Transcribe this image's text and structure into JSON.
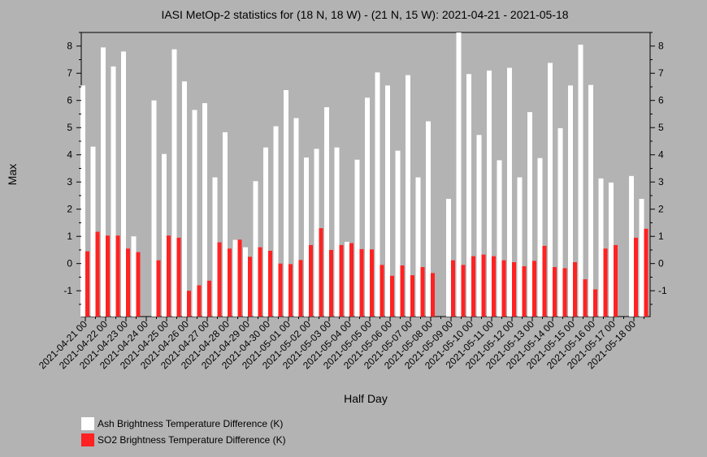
{
  "chart_data": {
    "type": "bar",
    "title": "IASI MetOp-2 statistics for (18 N, 18 W) - (21 N, 15 W): 2021-04-21 - 2021-05-18",
    "xlabel": "Half Day",
    "ylabel": "Max",
    "ylim": [
      -1.95,
      8.5
    ],
    "yticks": [
      -1,
      0,
      1,
      2,
      3,
      4,
      5,
      6,
      7,
      8
    ],
    "x_tick_labels": [
      "2021-04-21 00",
      "2021-04-22 00",
      "2021-04-23 00",
      "2021-04-24 00",
      "2021-04-25 00",
      "2021-04-26 00",
      "2021-04-27 00",
      "2021-04-28 00",
      "2021-04-29 00",
      "2021-04-30 00",
      "2021-05-01 00",
      "2021-05-02 00",
      "2021-05-03 00",
      "2021-05-04 00",
      "2021-05-05 00",
      "2021-05-06 00",
      "2021-05-07 00",
      "2021-05-08 00",
      "2021-05-09 00",
      "2021-05-10 00",
      "2021-05-11 00",
      "2021-05-12 00",
      "2021-05-13 00",
      "2021-05-14 00",
      "2021-05-15 00",
      "2021-05-16 00",
      "2021-05-17 00",
      "2021-05-18 00"
    ],
    "series": [
      {
        "name": "Ash Brightness Temperature Difference (K)",
        "color": "#ffffff",
        "values": [
          6.55,
          4.3,
          7.95,
          7.25,
          7.8,
          1.0,
          null,
          6.0,
          4.03,
          7.88,
          6.7,
          5.65,
          5.9,
          3.17,
          4.83,
          0.87,
          0.6,
          3.03,
          4.27,
          5.05,
          6.38,
          5.35,
          3.9,
          4.22,
          5.75,
          4.27,
          0.8,
          3.82,
          6.1,
          7.03,
          6.55,
          4.15,
          6.93,
          3.17,
          5.23,
          null,
          2.38,
          8.5,
          6.97,
          4.73,
          7.1,
          3.8,
          7.2,
          3.17,
          5.57,
          3.88,
          7.38,
          4.98,
          6.55,
          8.05,
          6.57,
          3.13,
          2.98,
          null,
          3.22,
          2.38
        ]
      },
      {
        "name": "SO2 Brightness Temperature Difference (K)",
        "color": "#ff2222",
        "values": [
          0.45,
          1.17,
          1.03,
          1.03,
          0.55,
          0.42,
          null,
          0.12,
          1.03,
          0.95,
          -1.0,
          -0.8,
          -0.63,
          0.78,
          0.55,
          0.88,
          0.25,
          0.6,
          0.47,
          0.0,
          -0.02,
          0.13,
          0.68,
          1.3,
          0.5,
          0.68,
          0.75,
          0.53,
          0.52,
          -0.05,
          -0.45,
          -0.07,
          -0.43,
          -0.13,
          -0.35,
          null,
          0.12,
          -0.05,
          0.27,
          0.33,
          0.27,
          0.12,
          0.05,
          -0.1,
          0.1,
          0.65,
          -0.13,
          -0.17,
          0.05,
          -0.58,
          -0.95,
          0.55,
          0.68,
          null,
          0.95,
          1.28
        ]
      }
    ],
    "legend_position": "bottom-left",
    "grid": false
  }
}
